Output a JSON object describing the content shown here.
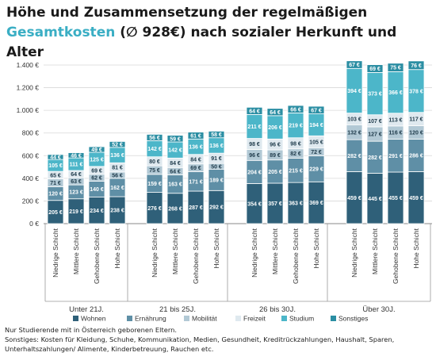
{
  "title": {
    "line1": "Höhe und Zusammensetzung der regelmäßigen",
    "accent": "Gesamtkosten",
    "rest": " (∅ 928€) nach sozialer Herkunft und Alter"
  },
  "footnote": {
    "line1": "Nur Studierende mit in Österreich geborenen Eltern.",
    "line2": "Sonstiges: Kosten für Kleidung, Schuhe, Kommunikation, Medien, Gesundheit, Kreditrückzahlungen, Haushalt, Sparen,",
    "line3": "Unterhaltszahlungen/ Alimente, Kinderbetreuung, Rauchen etc."
  },
  "chart_data": {
    "type": "bar",
    "stacked": true,
    "ylim": [
      0,
      1400
    ],
    "yticks": [
      0,
      200,
      400,
      600,
      800,
      1000,
      1200,
      1400
    ],
    "ytick_labels": [
      "0 €",
      "200 €",
      "400 €",
      "600 €",
      "800 €",
      "1.000 €",
      "1.200 €",
      "1.400 €"
    ],
    "grid": true,
    "legend_position": "bottom",
    "categories": [
      "Niedrige Schicht",
      "Mittlere Schicht",
      "Gehobene Schicht",
      "Hohe Schicht",
      "Niedrige Schicht",
      "Mittlere Schicht",
      "Gehobene Schicht",
      "Hohe Schicht",
      "Niedrige Schicht",
      "Mittlere Schicht",
      "Gehobene Schicht",
      "Hohe Schicht",
      "Niedrige Schicht",
      "Mittlere Schicht",
      "Gehobene Schicht",
      "Hohe Schicht"
    ],
    "groups": [
      {
        "label": "Unter 21J."
      },
      {
        "label": "21 bis 25J."
      },
      {
        "label": "26 bis 30J."
      },
      {
        "label": "Über 30J."
      }
    ],
    "series": [
      {
        "name": "Wohnen",
        "color": "#2f6079",
        "values": [
          205,
          219,
          234,
          238,
          276,
          268,
          287,
          292,
          354,
          357,
          363,
          369,
          459,
          445,
          455,
          459
        ],
        "labels": [
          "205 €",
          "219 €",
          "234 €",
          "238 €",
          "276 €",
          "268 €",
          "287 €",
          "292 €",
          "354 €",
          "357 €",
          "363 €",
          "369 €",
          "459 €",
          "445 €",
          "455 €",
          "459 €"
        ]
      },
      {
        "name": "Ernährung",
        "color": "#5f8fa6",
        "values": [
          120,
          123,
          140,
          162,
          159,
          163,
          171,
          189,
          204,
          205,
          215,
          229,
          282,
          282,
          291,
          286
        ],
        "labels": [
          "120 €",
          "123 €",
          "140 €",
          "162 €",
          "159 €",
          "163 €",
          "171 €",
          "189 €",
          "204 €",
          "205 €",
          "215 €",
          "229 €",
          "282 €",
          "282 €",
          "291 €",
          "286 €"
        ]
      },
      {
        "name": "Mobilität",
        "color": "#b2c9d5",
        "values": [
          71,
          63,
          62,
          56,
          75,
          64,
          69,
          50,
          96,
          89,
          82,
          72,
          132,
          127,
          116,
          120
        ],
        "labels": [
          "71 €",
          "63 €",
          "62 €",
          "56 €",
          "75 €",
          "64 €",
          "69 €",
          "50 €",
          "96 €",
          "89 €",
          "82 €",
          "72 €",
          "132 €",
          "127 €",
          "116 €",
          "120 €"
        ]
      },
      {
        "name": "Freizeit",
        "color": "#dfe9ef",
        "values": [
          65,
          64,
          69,
          81,
          80,
          84,
          84,
          91,
          98,
          96,
          98,
          105,
          103,
          107,
          113,
          117
        ],
        "labels": [
          "65 €",
          "64 €",
          "69 €",
          "81 €",
          "80 €",
          "84 €",
          "84 €",
          "91 €",
          "98 €",
          "96 €",
          "98 €",
          "105 €",
          "103 €",
          "107 €",
          "113 €",
          "117 €"
        ]
      },
      {
        "name": "Studium",
        "color": "#4cb6c9",
        "values": [
          105,
          111,
          125,
          136,
          142,
          142,
          136,
          136,
          211,
          206,
          219,
          194,
          394,
          373,
          366,
          378
        ],
        "labels": [
          "105 €",
          "111 €",
          "125 €",
          "136 €",
          "142 €",
          "142 €",
          "136 €",
          "136 €",
          "211 €",
          "206 €",
          "219 €",
          "194 €",
          "394 €",
          "373 €",
          "366 €",
          "378 €"
        ]
      },
      {
        "name": "Sonstiges",
        "color": "#2b8ea3",
        "values": [
          44,
          46,
          49,
          52,
          56,
          59,
          61,
          58,
          64,
          64,
          66,
          67,
          67,
          69,
          75,
          76
        ],
        "labels": [
          "44 €",
          "46 €",
          "49 €",
          "52 €",
          "56 €",
          "59 €",
          "61 €",
          "58 €",
          "64 €",
          "64 €",
          "66 €",
          "67 €",
          "67 €",
          "69 €",
          "75 €",
          "76 €"
        ]
      }
    ]
  }
}
